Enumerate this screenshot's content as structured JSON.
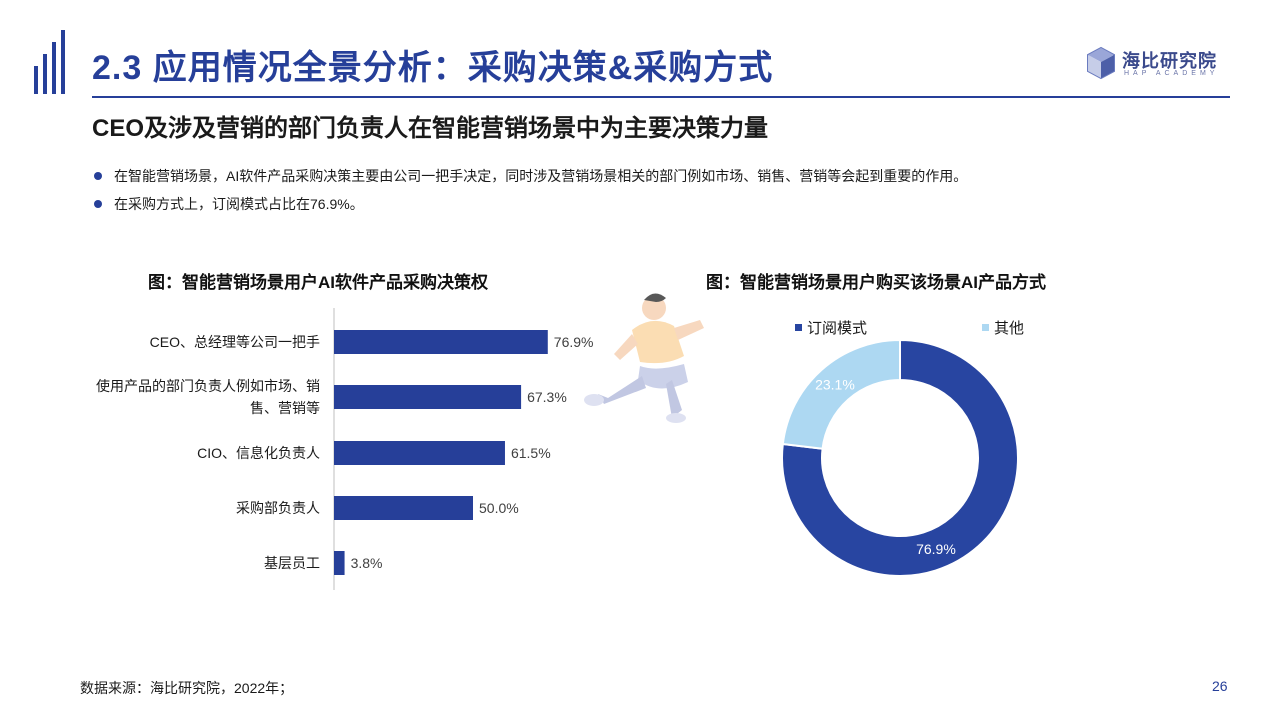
{
  "header": {
    "title": "2.3 应用情况全景分析：采购决策&采购方式",
    "logo_cn": "海比研究院",
    "logo_en": "HAP ACADEMY"
  },
  "subtitle": "CEO及涉及营销的部门负责人在智能营销场景中为主要决策力量",
  "bullets": [
    "在智能营销场景，AI软件产品采购决策主要由公司一把手决定，同时涉及营销场景相关的部门例如市场、销售、营销等会起到重要的作用。",
    "在采购方式上，订阅模式占比在76.9%。"
  ],
  "chart_data": [
    {
      "type": "bar",
      "orientation": "horizontal",
      "title": "图：智能营销场景用户AI软件产品采购决策权",
      "categories": [
        [
          "CEO、总经理等公司一把手"
        ],
        [
          "使用产品的部门负责人例如市场、销",
          "售、营销等"
        ],
        [
          "CIO、信息化负责人"
        ],
        [
          "采购部负责人"
        ],
        [
          "基层员工"
        ]
      ],
      "values": [
        76.9,
        67.3,
        61.5,
        50.0,
        3.8
      ],
      "value_labels": [
        "76.9%",
        "67.3%",
        "61.5%",
        "50.0%",
        "3.8%"
      ],
      "xlim": [
        0,
        100
      ],
      "color": "#263f99"
    },
    {
      "type": "pie",
      "variant": "donut",
      "title": "图：智能营销场景用户购买该场景AI产品方式",
      "labels": [
        "订阅模式",
        "其他"
      ],
      "values": [
        76.9,
        23.1
      ],
      "value_labels": [
        "76.9%",
        "23.1%"
      ],
      "colors": [
        "#2845a1",
        "#add8f2"
      ],
      "legend_position": "top"
    }
  ],
  "footer": {
    "source": "数据来源：海比研究院，2022年；",
    "page_number": "26"
  }
}
